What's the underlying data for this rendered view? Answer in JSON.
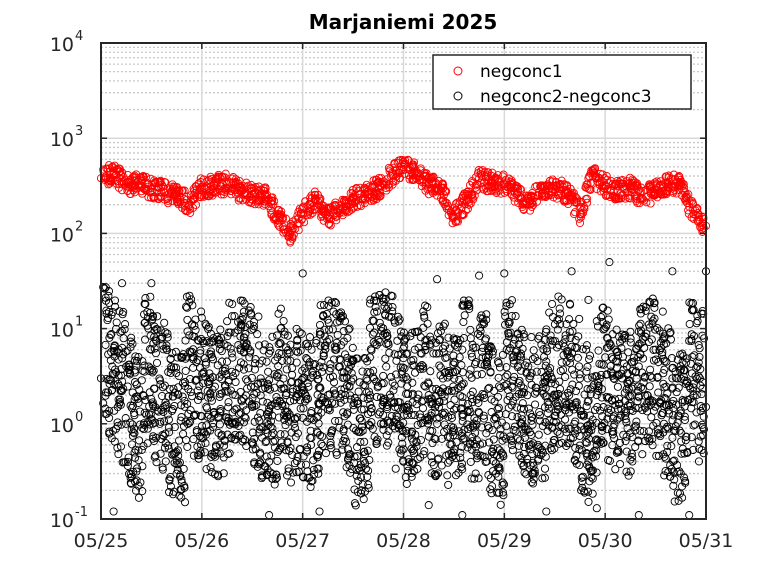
{
  "chart_data": {
    "type": "scatter",
    "title": "Marjaniemi 2025",
    "xlabel": "",
    "ylabel": "",
    "x_ticks": [
      "05/25",
      "05/26",
      "05/27",
      "05/28",
      "05/29",
      "05/30",
      "05/31"
    ],
    "y_ticks": [
      {
        "base": "10",
        "exp": "-1",
        "value": 0.1
      },
      {
        "base": "10",
        "exp": "0",
        "value": 1
      },
      {
        "base": "10",
        "exp": "1",
        "value": 10
      },
      {
        "base": "10",
        "exp": "2",
        "value": 100
      },
      {
        "base": "10",
        "exp": "3",
        "value": 1000
      },
      {
        "base": "10",
        "exp": "4",
        "value": 10000
      }
    ],
    "x_range": [
      "2025-05-25",
      "2025-05-31"
    ],
    "ylim": [
      0.1,
      10000
    ],
    "y_scale": "log",
    "grid": true,
    "legend_position": "top-right",
    "series": [
      {
        "name": "negconc1",
        "color": "#ff0000",
        "marker": "open-circle",
        "points": [
          [
            "2025-05-25T00:00",
            380
          ],
          [
            "2025-05-25T03:00",
            420
          ],
          [
            "2025-05-25T06:00",
            340
          ],
          [
            "2025-05-25T09:00",
            320
          ],
          [
            "2025-05-25T12:00",
            300
          ],
          [
            "2025-05-25T15:00",
            270
          ],
          [
            "2025-05-25T18:00",
            260
          ],
          [
            "2025-05-25T21:00",
            200
          ],
          [
            "2025-05-26T00:00",
            310
          ],
          [
            "2025-05-26T03:00",
            320
          ],
          [
            "2025-05-26T06:00",
            330
          ],
          [
            "2025-05-26T09:00",
            280
          ],
          [
            "2025-05-26T12:00",
            260
          ],
          [
            "2025-05-26T15:00",
            250
          ],
          [
            "2025-05-26T18:00",
            160
          ],
          [
            "2025-05-26T21:00",
            100
          ],
          [
            "2025-05-27T00:00",
            160
          ],
          [
            "2025-05-27T03:00",
            220
          ],
          [
            "2025-05-27T06:00",
            150
          ],
          [
            "2025-05-27T09:00",
            180
          ],
          [
            "2025-05-27T12:00",
            230
          ],
          [
            "2025-05-27T15:00",
            260
          ],
          [
            "2025-05-27T18:00",
            300
          ],
          [
            "2025-05-27T21:00",
            400
          ],
          [
            "2025-05-28T00:00",
            500
          ],
          [
            "2025-05-28T03:00",
            450
          ],
          [
            "2025-05-28T06:00",
            330
          ],
          [
            "2025-05-28T09:00",
            300
          ],
          [
            "2025-05-28T12:00",
            150
          ],
          [
            "2025-05-28T15:00",
            220
          ],
          [
            "2025-05-28T18:00",
            380
          ],
          [
            "2025-05-28T21:00",
            340
          ],
          [
            "2025-05-29T00:00",
            330
          ],
          [
            "2025-05-29T03:00",
            260
          ],
          [
            "2025-05-29T06:00",
            200
          ],
          [
            "2025-05-29T09:00",
            300
          ],
          [
            "2025-05-29T12:00",
            290
          ],
          [
            "2025-05-29T15:00",
            270
          ],
          [
            "2025-05-29T18:00",
            160
          ],
          [
            "2025-05-29T21:00",
            400
          ],
          [
            "2025-05-30T00:00",
            320
          ],
          [
            "2025-05-30T03:00",
            280
          ],
          [
            "2025-05-30T06:00",
            300
          ],
          [
            "2025-05-30T09:00",
            230
          ],
          [
            "2025-05-30T12:00",
            290
          ],
          [
            "2025-05-30T15:00",
            330
          ],
          [
            "2025-05-30T18:00",
            320
          ],
          [
            "2025-05-30T21:00",
            160
          ],
          [
            "2025-05-31T00:00",
            120
          ]
        ]
      },
      {
        "name": "negconc2-negconc3",
        "color": "#000000",
        "marker": "open-circle",
        "points": [
          [
            "2025-05-25T00:00",
            3.0
          ],
          [
            "2025-05-25T02:00",
            8.0
          ],
          [
            "2025-05-25T04:00",
            1.5
          ],
          [
            "2025-05-25T06:00",
            4.0
          ],
          [
            "2025-05-25T08:00",
            0.5
          ],
          [
            "2025-05-25T10:00",
            2.0
          ],
          [
            "2025-05-25T12:00",
            6.0
          ],
          [
            "2025-05-25T14:00",
            1.0
          ],
          [
            "2025-05-25T16:00",
            3.5
          ],
          [
            "2025-05-25T18:00",
            0.3
          ],
          [
            "2025-05-25T20:00",
            2.5
          ],
          [
            "2025-05-25T22:00",
            5.0
          ],
          [
            "2025-05-26T00:00",
            1.2
          ],
          [
            "2025-05-26T02:00",
            3.0
          ],
          [
            "2025-05-26T04:00",
            0.8
          ],
          [
            "2025-05-26T06:00",
            4.5
          ],
          [
            "2025-05-26T08:00",
            2.0
          ],
          [
            "2025-05-26T10:00",
            7.0
          ],
          [
            "2025-05-26T12:00",
            1.5
          ],
          [
            "2025-05-26T14:00",
            3.0
          ],
          [
            "2025-05-26T16:00",
            0.4
          ],
          [
            "2025-05-26T18:00",
            5.0
          ],
          [
            "2025-05-26T20:00",
            2.0
          ],
          [
            "2025-05-26T22:00",
            1.0
          ],
          [
            "2025-05-27T00:00",
            3.0
          ],
          [
            "2025-05-27T02:00",
            0.6
          ],
          [
            "2025-05-27T04:00",
            4.0
          ],
          [
            "2025-05-27T06:00",
            2.0
          ],
          [
            "2025-05-27T08:00",
            6.0
          ],
          [
            "2025-05-27T10:00",
            1.2
          ],
          [
            "2025-05-27T12:00",
            3.0
          ],
          [
            "2025-05-27T14:00",
            0.2
          ],
          [
            "2025-05-27T16:00",
            5.0
          ],
          [
            "2025-05-27T18:00",
            2.5
          ],
          [
            "2025-05-27T20:00",
            9.0
          ],
          [
            "2025-05-27T22:00",
            1.5
          ],
          [
            "2025-05-28T00:00",
            3.0
          ],
          [
            "2025-05-28T02:00",
            0.7
          ],
          [
            "2025-05-28T04:00",
            4.0
          ],
          [
            "2025-05-28T06:00",
            2.0
          ],
          [
            "2025-05-28T08:00",
            1.0
          ],
          [
            "2025-05-28T10:00",
            3.5
          ],
          [
            "2025-05-28T12:00",
            0.5
          ],
          [
            "2025-05-28T14:00",
            6.0
          ],
          [
            "2025-05-28T16:00",
            2.0
          ],
          [
            "2025-05-28T18:00",
            1.3
          ],
          [
            "2025-05-28T20:00",
            4.0
          ],
          [
            "2025-05-28T22:00",
            0.3
          ],
          [
            "2025-05-29T00:00",
            2.5
          ],
          [
            "2025-05-29T02:00",
            5.0
          ],
          [
            "2025-05-29T04:00",
            1.0
          ],
          [
            "2025-05-29T06:00",
            3.0
          ],
          [
            "2025-05-29T08:00",
            0.6
          ],
          [
            "2025-05-29T10:00",
            4.5
          ],
          [
            "2025-05-29T12:00",
            2.0
          ],
          [
            "2025-05-29T14:00",
            7.0
          ],
          [
            "2025-05-29T16:00",
            1.5
          ],
          [
            "2025-05-29T18:00",
            3.0
          ],
          [
            "2025-05-29T20:00",
            0.4
          ],
          [
            "2025-05-29T22:00",
            2.0
          ],
          [
            "2025-05-30T00:00",
            5.0
          ],
          [
            "2025-05-30T02:00",
            1.2
          ],
          [
            "2025-05-30T04:00",
            3.0
          ],
          [
            "2025-05-30T06:00",
            0.8
          ],
          [
            "2025-05-30T08:00",
            4.0
          ],
          [
            "2025-05-30T10:00",
            2.0
          ],
          [
            "2025-05-30T12:00",
            6.0
          ],
          [
            "2025-05-30T14:00",
            1.0
          ],
          [
            "2025-05-30T16:00",
            3.0
          ],
          [
            "2025-05-30T18:00",
            0.3
          ],
          [
            "2025-05-30T20:00",
            2.5
          ],
          [
            "2025-05-30T22:00",
            4.0
          ],
          [
            "2025-05-31T00:00",
            1.5
          ],
          [
            "2025-05-25T05:00",
            30
          ],
          [
            "2025-05-25T12:00",
            30
          ],
          [
            "2025-05-26T00:00",
            13
          ],
          [
            "2025-05-26T10:00",
            15
          ],
          [
            "2025-05-27T00:00",
            38
          ],
          [
            "2025-05-27T20:00",
            16
          ],
          [
            "2025-05-28T08:00",
            33
          ],
          [
            "2025-05-28T18:00",
            36
          ],
          [
            "2025-05-29T00:00",
            38
          ],
          [
            "2025-05-29T16:00",
            40
          ],
          [
            "2025-05-29T20:00",
            20
          ],
          [
            "2025-05-30T01:00",
            50
          ],
          [
            "2025-05-30T16:00",
            40
          ],
          [
            "2025-05-30T22:00",
            12
          ],
          [
            "2025-05-31T00:00",
            40
          ],
          [
            "2025-05-25T03:00",
            0.12
          ],
          [
            "2025-05-25T20:00",
            0.15
          ],
          [
            "2025-05-26T16:00",
            0.11
          ],
          [
            "2025-05-27T04:00",
            0.12
          ],
          [
            "2025-05-28T06:00",
            0.14
          ],
          [
            "2025-05-28T14:00",
            0.11
          ],
          [
            "2025-05-29T10:00",
            0.12
          ],
          [
            "2025-05-29T22:00",
            0.13
          ],
          [
            "2025-05-30T08:00",
            0.11
          ],
          [
            "2025-05-30T20:00",
            0.11
          ]
        ]
      }
    ]
  }
}
